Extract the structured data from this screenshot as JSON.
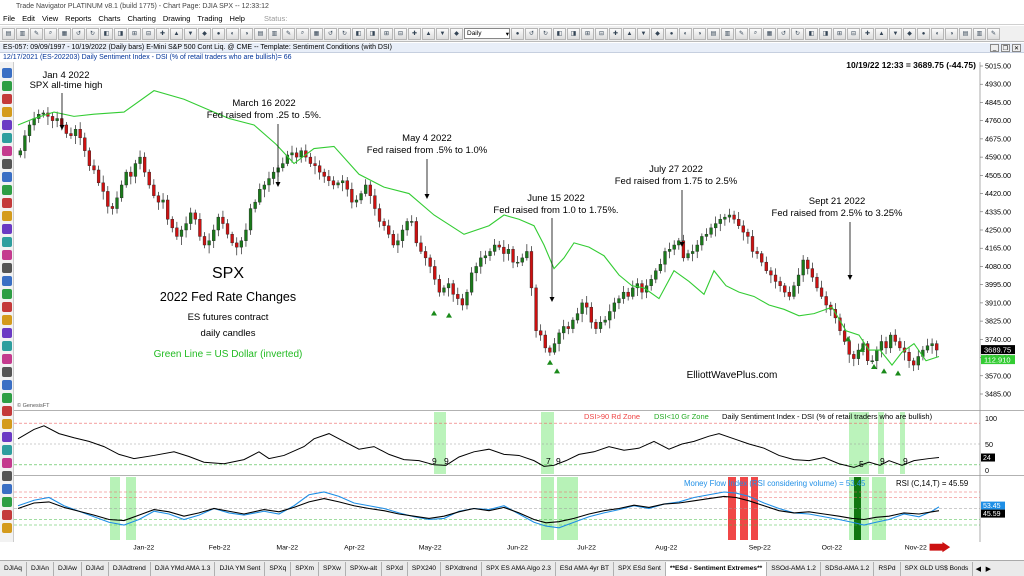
{
  "window": {
    "title": "Trade Navigator PLATINUM v8.1 (build 1775)  -  Chart Page: DJIA SPX  -- 12:33:12"
  },
  "menu": {
    "items": [
      "File",
      "Edit",
      "View",
      "Reports",
      "Charts",
      "Charting",
      "Drawing",
      "Trading",
      "Help"
    ],
    "status": "Status:"
  },
  "toolbar": {
    "period_select": "Daily"
  },
  "infobar": {
    "line1": "ES-057:  09/09/1997 - 10/19/2022  (Daily bars)    E-Mini S&P 500 Cont Liq. @ CME   --  Template: Sentiment Conditions (with DSI)",
    "line2": "12/17/2021 (ES-202203)  Daily Sentiment Index - DSI (% of retail traders who are bullish)= 66"
  },
  "chart": {
    "quote": "10/19/22 12:33 = 3689.75 (-44.75)",
    "price_label": "3689.75",
    "dollar_label": "112.910",
    "copyright": "© GenesisFT",
    "website": "ElliottWavePlus.com",
    "price_axis": [
      "5015.00",
      "4930.00",
      "4845.00",
      "4760.00",
      "4675.00",
      "4590.00",
      "4505.00",
      "4420.00",
      "4335.00",
      "4250.00",
      "4165.00",
      "4080.00",
      "3995.00",
      "3910.00",
      "3825.00",
      "3740.00",
      "3655.00",
      "3570.00",
      "3485.00"
    ],
    "text_block": {
      "title": "SPX",
      "subtitle": "2022 Fed Rate Changes",
      "line1": "ES futures contract",
      "line2": "daily candles",
      "line3": "Green Line = US Dollar (inverted)"
    },
    "annotations": [
      {
        "date": "Jan 4 2022",
        "text": "SPX all-time high"
      },
      {
        "date": "March 16 2022",
        "text": "Fed raised from .25 to .5%."
      },
      {
        "date": "May 4 2022",
        "text": "Fed raised from .5% to 1.0%"
      },
      {
        "date": "June 15 2022",
        "text": "Fed raised from 1.0 to 1.75%."
      },
      {
        "date": "July 27 2022",
        "text": "Fed raised from 1.75 to 2.5%"
      },
      {
        "date": "Sept 21 2022",
        "text": "Fed raised from 2.5% to 3.25%"
      }
    ],
    "dsi": {
      "red_zone": "DSI>90 Rd Zone",
      "green_zone": "DSI<10 Gr Zone",
      "title": "Daily Sentiment Index - DSI (% of retail traders who are bullish)",
      "axis": [
        "100",
        "50",
        "0"
      ],
      "last_value": "24",
      "low_labels": [
        "9",
        "9",
        "7",
        "9",
        "5",
        "9",
        "9"
      ]
    },
    "mfi": {
      "title": "Money Flow Index (RSI considering volume) = 53.45",
      "rsi_title": "RSI (C,14,T) = 45.59",
      "label1": "53.45",
      "label2": "45.59"
    },
    "months": [
      "Jan-22",
      "Feb-22",
      "Mar-22",
      "Apr-22",
      "May-22",
      "Jun-22",
      "Jul-22",
      "Aug-22",
      "Sep-22",
      "Oct-22",
      "Nov-22"
    ]
  },
  "tabs": [
    "DJIAq",
    "DJIAn",
    "DJIAw",
    "DJIAd",
    "DJIAdtrend",
    "DJIA YMd AMA 1.3",
    "DJIA YM Sent",
    "SPXq",
    "SPXm",
    "SPXw",
    "SPXw-alt",
    "SPXd",
    "SPX240",
    "SPXdtrend",
    "SPX ES AMA Algo 2.3",
    "ESd AMA 4yr BT",
    "SPX ESd Sent",
    "**ESd - Sentiment Extremes**",
    "SSOd-AMA 1.2",
    "SDSd-AMA 1.2",
    "RSPd",
    "SPX GLD US$ Bonds"
  ],
  "active_tab": "**ESd - Sentiment Extremes**",
  "colors": {
    "up": "#1a7a1a",
    "down": "#cc1111",
    "dollar": "#33cc33",
    "mfi": "#1f8fe6"
  }
}
